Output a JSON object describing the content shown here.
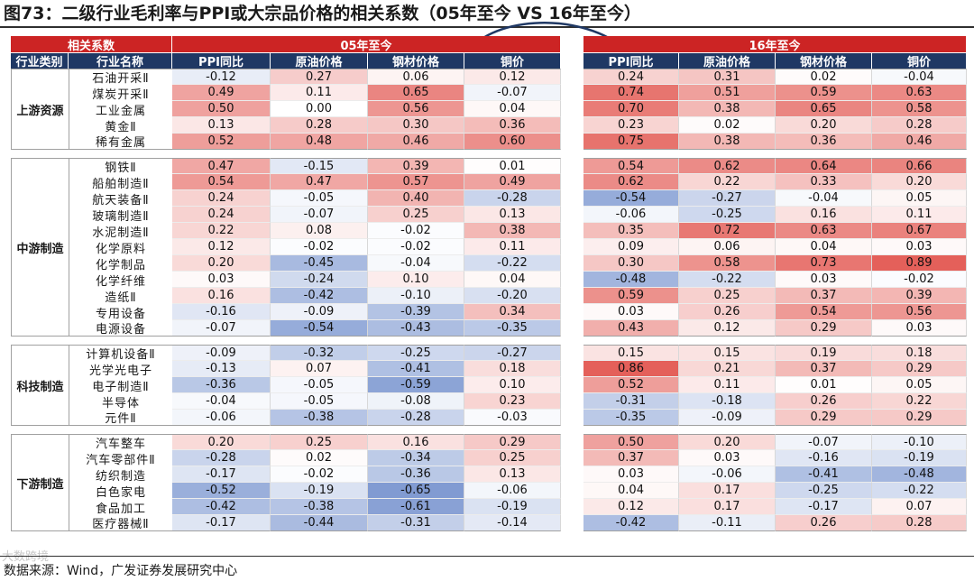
{
  "figure": {
    "title": "图73：二级行业毛利率与PPI或大宗品价格的相关系数（05年至今 VS 16年至今）",
    "source": "数据来源：Wind，广发证券发展研究中心",
    "watermark": "大数跨境"
  },
  "colors": {
    "header_red": "#cc2424",
    "header_navy": "#1f3864",
    "positive": "#e4605a",
    "negative": "#5a7cc4"
  },
  "chart_data": {
    "type": "heatmap",
    "title": "图73：二级行业毛利率与PPI或大宗品价格的相关系数（05年至今 VS 16年至今）",
    "corner_label": "相关系数",
    "row_header_labels": [
      "行业类别",
      "行业名称"
    ],
    "periods": [
      "05年至今",
      "16年至今"
    ],
    "columns": [
      "PPI同比",
      "原油价格",
      "钢材价格",
      "铜价"
    ],
    "groups": [
      {
        "name": "上游资源",
        "rows": [
          {
            "name": "石油开采Ⅱ",
            "v05": [
              -0.12,
              0.27,
              0.06,
              0.12
            ],
            "v16": [
              0.24,
              0.31,
              0.02,
              -0.04
            ]
          },
          {
            "name": "煤炭开采Ⅱ",
            "v05": [
              0.49,
              0.11,
              0.65,
              -0.07
            ],
            "v16": [
              0.74,
              0.51,
              0.59,
              0.63
            ]
          },
          {
            "name": "工业金属",
            "v05": [
              0.5,
              0.0,
              0.56,
              0.04
            ],
            "v16": [
              0.7,
              0.38,
              0.65,
              0.58
            ]
          },
          {
            "name": "黄金Ⅱ",
            "v05": [
              0.13,
              0.28,
              0.3,
              0.36
            ],
            "v16": [
              0.23,
              0.02,
              0.2,
              0.28
            ]
          },
          {
            "name": "稀有金属",
            "v05": [
              0.52,
              0.48,
              0.46,
              0.6
            ],
            "v16": [
              0.75,
              0.38,
              0.36,
              0.46
            ]
          }
        ]
      },
      {
        "name": "中游制造",
        "rows": [
          {
            "name": "钢铁Ⅱ",
            "v05": [
              0.47,
              -0.15,
              0.39,
              0.01
            ],
            "v16": [
              0.54,
              0.62,
              0.64,
              0.66
            ]
          },
          {
            "name": "船舶制造Ⅱ",
            "v05": [
              0.54,
              0.47,
              0.57,
              0.49
            ],
            "v16": [
              0.62,
              0.22,
              0.33,
              0.2
            ]
          },
          {
            "name": "航天装备Ⅱ",
            "v05": [
              0.24,
              -0.05,
              0.4,
              -0.28
            ],
            "v16": [
              -0.54,
              -0.27,
              -0.04,
              0.05
            ]
          },
          {
            "name": "玻璃制造Ⅱ",
            "v05": [
              0.24,
              -0.07,
              0.25,
              0.13
            ],
            "v16": [
              -0.06,
              -0.25,
              0.16,
              0.11
            ]
          },
          {
            "name": "水泥制造Ⅱ",
            "v05": [
              0.22,
              0.08,
              -0.02,
              0.38
            ],
            "v16": [
              0.35,
              0.72,
              0.63,
              0.67
            ]
          },
          {
            "name": "化学原料",
            "v05": [
              0.12,
              -0.02,
              -0.02,
              0.11
            ],
            "v16": [
              0.09,
              0.06,
              0.04,
              0.03
            ]
          },
          {
            "name": "化学制品",
            "v05": [
              0.2,
              -0.45,
              -0.04,
              -0.22
            ],
            "v16": [
              0.3,
              0.58,
              0.73,
              0.89
            ]
          },
          {
            "name": "化学纤维",
            "v05": [
              0.03,
              -0.24,
              0.1,
              0.04
            ],
            "v16": [
              -0.48,
              -0.22,
              0.03,
              -0.02
            ]
          },
          {
            "name": "造纸Ⅱ",
            "v05": [
              0.16,
              -0.42,
              -0.1,
              -0.2
            ],
            "v16": [
              0.59,
              0.25,
              0.37,
              0.39
            ]
          },
          {
            "name": "专用设备",
            "v05": [
              -0.16,
              -0.09,
              -0.39,
              0.34
            ],
            "v16": [
              0.03,
              0.26,
              0.54,
              0.56
            ]
          },
          {
            "name": "电源设备",
            "v05": [
              -0.07,
              -0.54,
              -0.43,
              -0.35
            ],
            "v16": [
              0.43,
              0.12,
              0.29,
              0.03
            ]
          }
        ]
      },
      {
        "name": "科技制造",
        "rows": [
          {
            "name": "计算机设备Ⅱ",
            "v05": [
              -0.09,
              -0.32,
              -0.25,
              -0.27
            ],
            "v16": [
              0.15,
              0.15,
              0.19,
              0.18
            ]
          },
          {
            "name": "光学光电子",
            "v05": [
              -0.13,
              0.07,
              -0.41,
              0.18
            ],
            "v16": [
              0.86,
              0.21,
              0.37,
              0.29
            ]
          },
          {
            "name": "电子制造Ⅱ",
            "v05": [
              -0.36,
              -0.05,
              -0.59,
              0.1
            ],
            "v16": [
              0.52,
              0.11,
              0.01,
              0.05
            ]
          },
          {
            "name": "半导体",
            "v05": [
              -0.04,
              -0.05,
              -0.08,
              0.23
            ],
            "v16": [
              -0.31,
              -0.18,
              0.26,
              0.22
            ]
          },
          {
            "name": "元件Ⅱ",
            "v05": [
              -0.06,
              -0.38,
              -0.28,
              -0.03
            ],
            "v16": [
              -0.35,
              -0.09,
              0.29,
              0.29
            ]
          }
        ]
      },
      {
        "name": "下游制造",
        "rows": [
          {
            "name": "汽车整车",
            "v05": [
              0.2,
              0.25,
              0.16,
              0.29
            ],
            "v16": [
              0.5,
              0.2,
              -0.07,
              -0.1
            ]
          },
          {
            "name": "汽车零部件Ⅱ",
            "v05": [
              -0.28,
              0.02,
              -0.34,
              0.25
            ],
            "v16": [
              0.37,
              0.03,
              -0.16,
              -0.19
            ]
          },
          {
            "name": "纺织制造",
            "v05": [
              -0.17,
              -0.02,
              -0.36,
              0.13
            ],
            "v16": [
              0.03,
              -0.06,
              -0.41,
              -0.48
            ]
          },
          {
            "name": "白色家电",
            "v05": [
              -0.52,
              -0.19,
              -0.65,
              -0.06
            ],
            "v16": [
              0.04,
              0.17,
              -0.25,
              -0.22
            ]
          },
          {
            "name": "食品加工",
            "v05": [
              -0.42,
              -0.38,
              -0.61,
              -0.19
            ],
            "v16": [
              0.12,
              0.17,
              -0.17,
              0.07
            ]
          },
          {
            "name": "医疗器械Ⅱ",
            "v05": [
              -0.17,
              -0.44,
              -0.31,
              -0.14
            ],
            "v16": [
              -0.42,
              -0.11,
              0.26,
              0.28
            ]
          }
        ]
      }
    ]
  }
}
